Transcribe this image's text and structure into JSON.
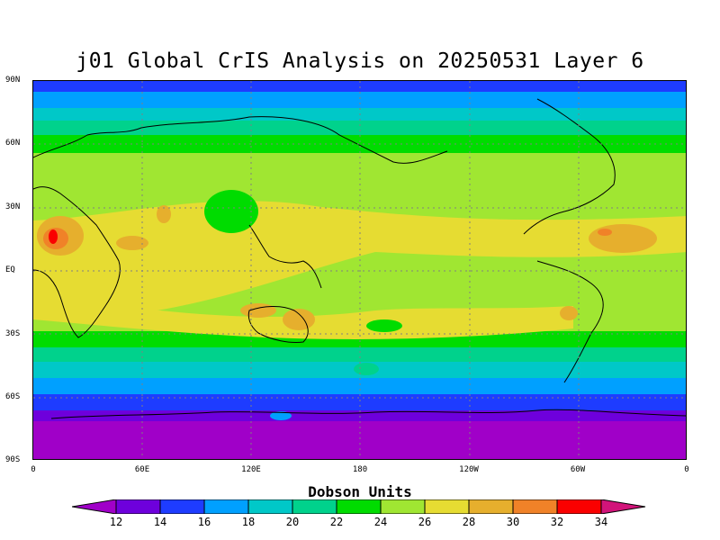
{
  "title": "j01 Global CrIS Analysis on 20250531 Layer 6",
  "map": {
    "lat_labels": [
      "90N",
      "60N",
      "30N",
      "EQ",
      "30S",
      "60S",
      "90S"
    ],
    "lon_labels": [
      "0",
      "60E",
      "120E",
      "180",
      "120W",
      "60W",
      "0"
    ]
  },
  "colorbar": {
    "title": "Dobson Units",
    "ticks": [
      "12",
      "14",
      "16",
      "18",
      "20",
      "22",
      "24",
      "26",
      "28",
      "30",
      "32",
      "34"
    ],
    "colors": [
      "#a000c8",
      "#6e00dc",
      "#1e3cff",
      "#00a0ff",
      "#00c8c8",
      "#00d28c",
      "#00dc00",
      "#a0e632",
      "#e6dc32",
      "#e6af2d",
      "#f08228",
      "#fa0000",
      "#d2147a"
    ]
  }
}
